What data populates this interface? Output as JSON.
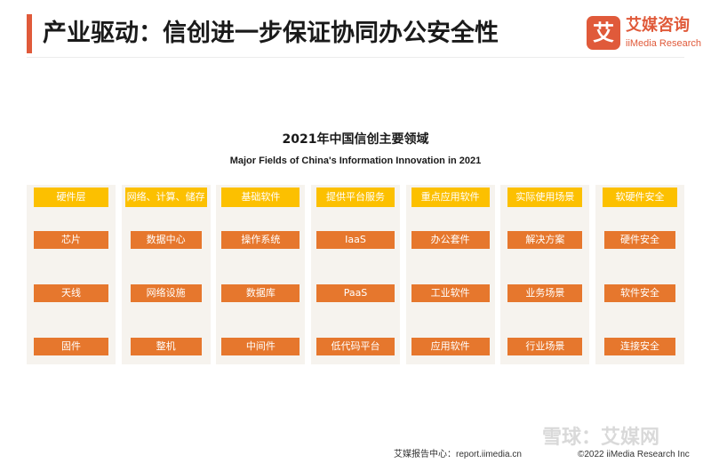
{
  "header": {
    "title": "产业驱动：信创进一步保证协同办公安全性",
    "accent_color": "#e05a3a"
  },
  "logo": {
    "mark": "艾",
    "name_cn": "艾媒咨询",
    "name_en": "iiMedia Research"
  },
  "diagram": {
    "title": "2021年中国信创主要领域",
    "subtitle": "Major Fields of China's Information Innovation in 2021",
    "header_color": "#fcc000",
    "item_color": "#e6772d",
    "columns": [
      {
        "header": "硬件层",
        "items": [
          "芯片",
          "天线",
          "固件"
        ]
      },
      {
        "header": "网络、计算、储存",
        "items": [
          "数据中心",
          "网络设施",
          "整机"
        ]
      },
      {
        "header": "基础软件",
        "items": [
          "操作系统",
          "数据库",
          "中间件"
        ]
      },
      {
        "header": "提供平台服务",
        "items": [
          "IaaS",
          "PaaS",
          "低代码平台"
        ]
      },
      {
        "header": "重点应用软件",
        "items": [
          "办公套件",
          "工业软件",
          "应用软件"
        ]
      },
      {
        "header": "实际使用场景",
        "items": [
          "解决方案",
          "业务场景",
          "行业场景"
        ]
      },
      {
        "header": "软硬件安全",
        "items": [
          "硬件安全",
          "软件安全",
          "连接安全"
        ]
      }
    ]
  },
  "footer": {
    "source": "艾媒报告中心：report.iimedia.cn",
    "copyright": "©2022  iiMedia Research  Inc"
  },
  "watermark": {
    "text": "雪球：艾媒网"
  }
}
